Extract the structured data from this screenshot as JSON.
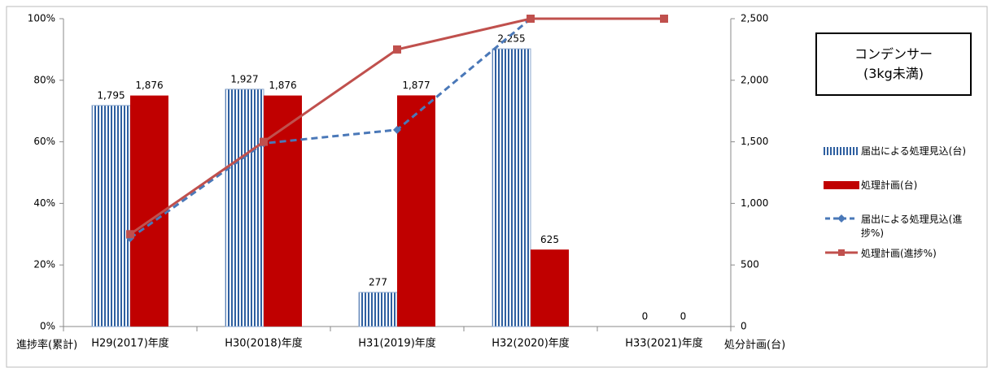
{
  "chart_data": {
    "type": "bar",
    "annotation": [
      "コンデンサー",
      "(3kg未満)"
    ],
    "ylabel": "進捗率(累計)",
    "y2label": "処分計画(台)",
    "categories": [
      "H29(2017)年度",
      "H30(2018)年度",
      "H31(2019)年度",
      "H32(2020)年度",
      "H33(2021)年度"
    ],
    "ylim": [
      0,
      100
    ],
    "yticks": [
      {
        "value": 0,
        "label": "0%"
      },
      {
        "value": 20,
        "label": "20%"
      },
      {
        "value": 40,
        "label": "40%"
      },
      {
        "value": 60,
        "label": "60%"
      },
      {
        "value": 80,
        "label": "80%"
      },
      {
        "value": 100,
        "label": "100%"
      }
    ],
    "y2lim": [
      0,
      2500
    ],
    "y2ticks": [
      0,
      500,
      {
        "value": 1000,
        "label": "1,000"
      },
      {
        "value": 1500,
        "label": "1,500"
      },
      {
        "value": 2000,
        "label": "2,000"
      },
      {
        "value": 2500,
        "label": "2,500"
      }
    ],
    "series": [
      {
        "name": "届出による処理見込(台)",
        "type": "bar",
        "axis": "y2",
        "color": "#2e5fa0",
        "values": [
          1795,
          1927,
          277,
          2255,
          0
        ],
        "value_labels": [
          "1,795",
          "1,927",
          "277",
          "2,255",
          "0"
        ]
      },
      {
        "name": "処理計画(台)",
        "type": "bar",
        "axis": "y2",
        "color": "#c00000",
        "values": [
          1876,
          1876,
          1877,
          625,
          0
        ],
        "value_labels": [
          "1,876",
          "1,876",
          "1,877",
          "625",
          "0"
        ]
      },
      {
        "name": "届出による処理見込(進捗%)",
        "type": "line",
        "color": "#4a78b8",
        "dashed": true,
        "marker": "diamond",
        "values": [
          28.7,
          59.5,
          63.9,
          100,
          null
        ]
      },
      {
        "name": "処理計画(進捗%)",
        "type": "line",
        "color": "#c0504d",
        "marker": "square",
        "values": [
          30,
          60,
          90,
          100,
          100
        ]
      }
    ],
    "legend": "right"
  }
}
